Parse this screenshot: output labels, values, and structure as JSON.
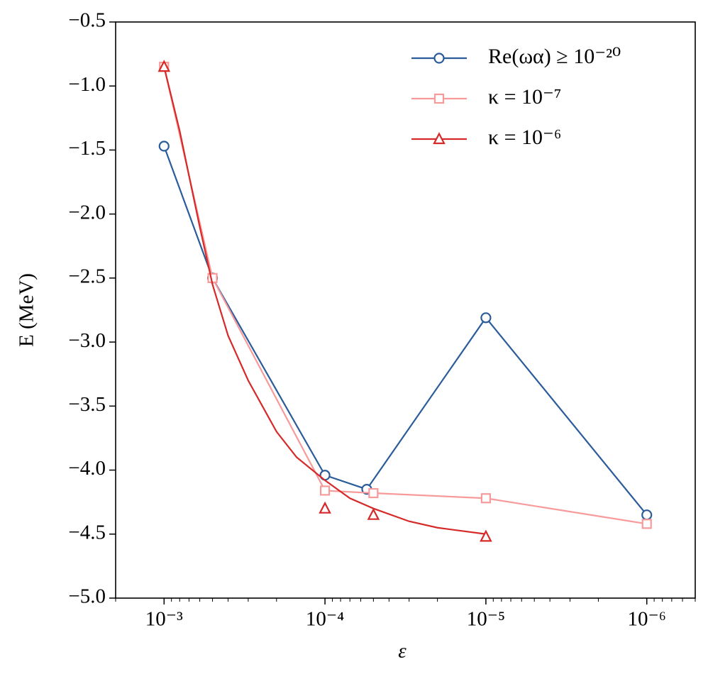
{
  "chart_data": {
    "type": "line",
    "xlabel": "ε",
    "ylabel": "E (MeV)",
    "xscale": "log",
    "xlim": [
      0.002,
      5e-07
    ],
    "ylim": [
      -5.0,
      -0.5
    ],
    "xticks": [
      {
        "value": 0.001,
        "label": "10⁻³"
      },
      {
        "value": 0.0001,
        "label": "10⁻⁴"
      },
      {
        "value": 1e-05,
        "label": "10⁻⁵"
      },
      {
        "value": 1e-06,
        "label": "10⁻⁶"
      }
    ],
    "yticks": [
      {
        "value": -5.0,
        "label": "−5.0"
      },
      {
        "value": -4.5,
        "label": "−4.5"
      },
      {
        "value": -4.0,
        "label": "−4.0"
      },
      {
        "value": -3.5,
        "label": "−3.5"
      },
      {
        "value": -3.0,
        "label": "−3.0"
      },
      {
        "value": -2.5,
        "label": "−2.5"
      },
      {
        "value": -2.0,
        "label": "−2.0"
      },
      {
        "value": -1.5,
        "label": "−1.5"
      },
      {
        "value": -1.0,
        "label": "−1.0"
      },
      {
        "value": -0.5,
        "label": "−0.5"
      }
    ],
    "legend": "upper right",
    "series": [
      {
        "name": "Re(ωα) ≥ 10⁻²⁰",
        "color": "#2b5c9a",
        "marker": "circle",
        "line": true,
        "x": [
          0.001,
          0.0005,
          0.0001,
          5.5e-05,
          1e-05,
          1e-06
        ],
        "values": [
          -1.47,
          -2.5,
          -4.04,
          -4.15,
          -2.81,
          -4.35
        ]
      },
      {
        "name": "κ = 10⁻⁷",
        "color": "#f79a9a",
        "marker": "square",
        "line": true,
        "x": [
          0.001,
          0.0005,
          0.0001,
          5e-05,
          1e-05,
          1e-06
        ],
        "values": [
          -0.85,
          -2.5,
          -4.16,
          -4.18,
          -4.22,
          -4.42
        ]
      },
      {
        "name": "κ = 10⁻⁶",
        "color": "#d62a2a",
        "marker": "triangle",
        "line": false,
        "x": [
          0.001,
          0.0001,
          5e-05,
          1e-05
        ],
        "values": [
          -0.85,
          -4.3,
          -4.35,
          -4.52
        ],
        "curve": {
          "x": [
            0.001,
            0.0008,
            0.0007,
            0.0006,
            0.0005,
            0.0004,
            0.0003,
            0.0002,
            0.00015,
            0.0001,
            7e-05,
            5e-05,
            3e-05,
            2e-05,
            1e-05
          ],
          "values": [
            -0.85,
            -1.35,
            -1.7,
            -2.1,
            -2.55,
            -2.95,
            -3.3,
            -3.7,
            -3.9,
            -4.08,
            -4.22,
            -4.3,
            -4.4,
            -4.45,
            -4.5
          ]
        }
      }
    ]
  }
}
